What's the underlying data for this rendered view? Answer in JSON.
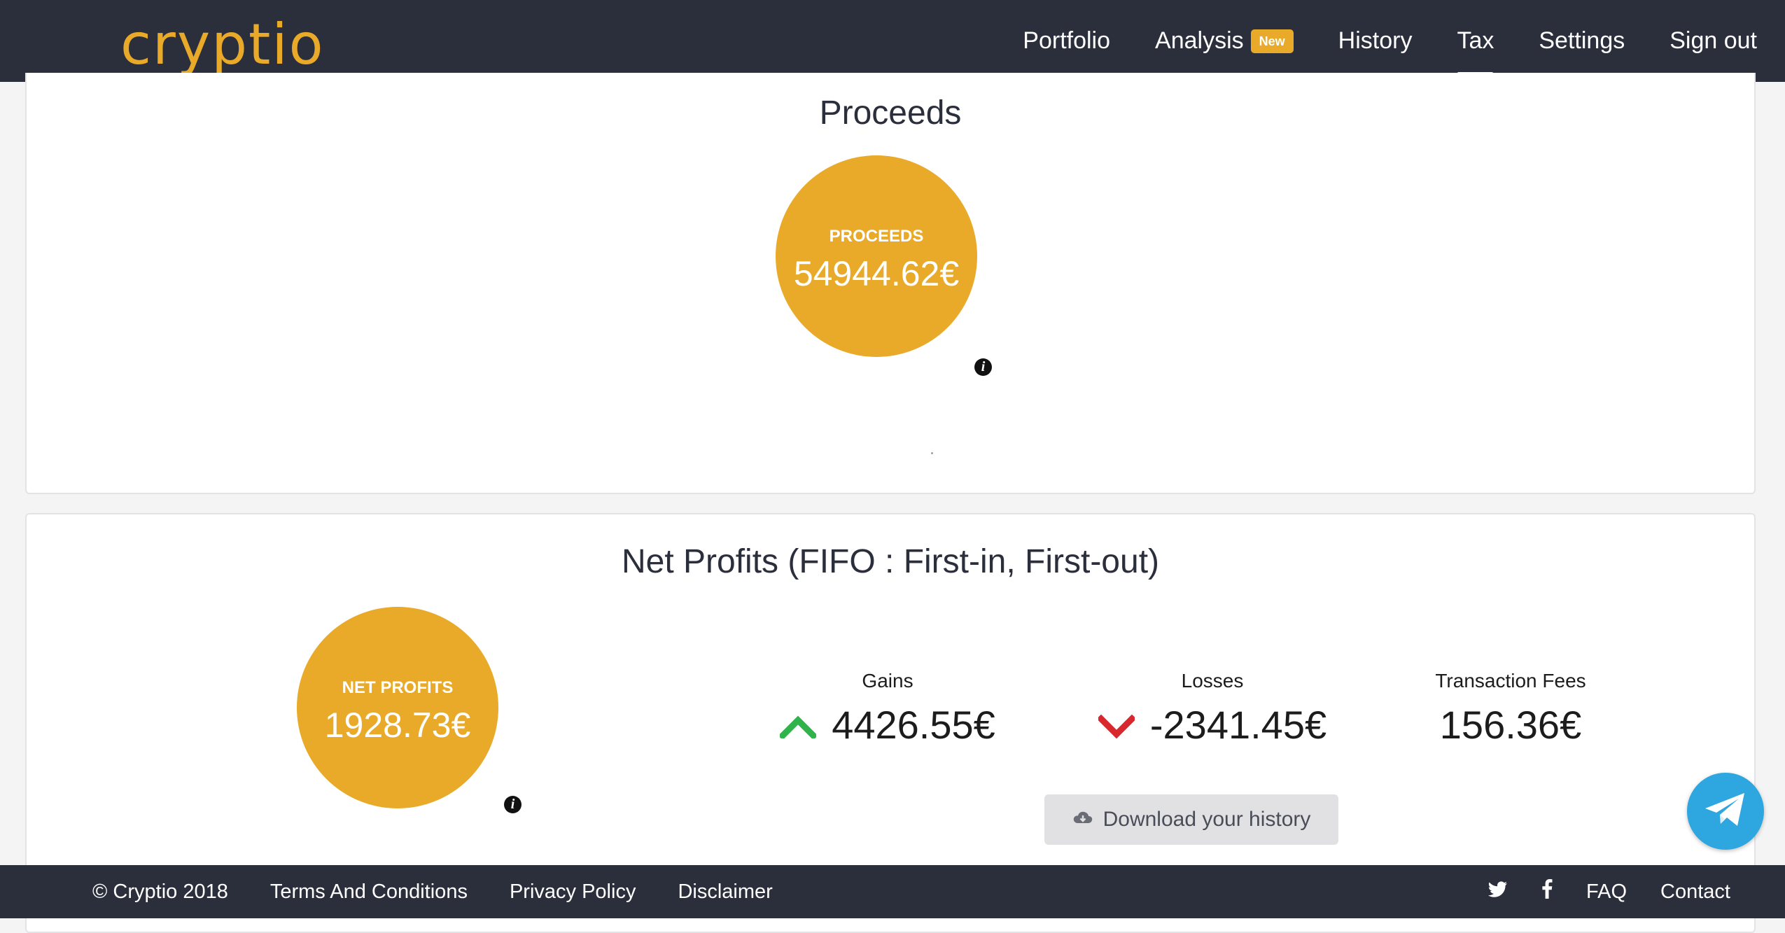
{
  "brand": {
    "logo_text": "cryptio",
    "accent_color": "#e8aa28",
    "header_bg": "#2b2e3b"
  },
  "nav": {
    "items": [
      {
        "label": "Portfolio"
      },
      {
        "label": "Analysis",
        "badge": "New"
      },
      {
        "label": "History"
      },
      {
        "label": "Tax",
        "active": true
      },
      {
        "label": "Settings"
      },
      {
        "label": "Sign out"
      }
    ]
  },
  "proceeds": {
    "title": "Proceeds",
    "circle_label": "PROCEEDS",
    "circle_value": "54944.62€"
  },
  "profits": {
    "title": "Net Profits (FIFO : First-in, First-out)",
    "circle_label": "NET PROFITS",
    "circle_value": "1928.73€",
    "gains_label": "Gains",
    "gains_value": "4426.55€",
    "losses_label": "Losses",
    "losses_value": "-2341.45€",
    "fees_label": "Transaction Fees",
    "fees_value": "156.36€",
    "download_label": "Download your history",
    "gain_color": "#2fb34a",
    "loss_color": "#d9272e"
  },
  "footer": {
    "copyright": "© Cryptio 2018",
    "terms": "Terms And Conditions",
    "privacy": "Privacy Policy",
    "disclaimer": "Disclaimer",
    "faq": "FAQ",
    "contact": "Contact"
  },
  "icons": [
    "info-icon",
    "arrow-up-icon",
    "arrow-down-icon",
    "cloud-download-icon",
    "twitter-icon",
    "facebook-icon",
    "telegram-icon"
  ]
}
